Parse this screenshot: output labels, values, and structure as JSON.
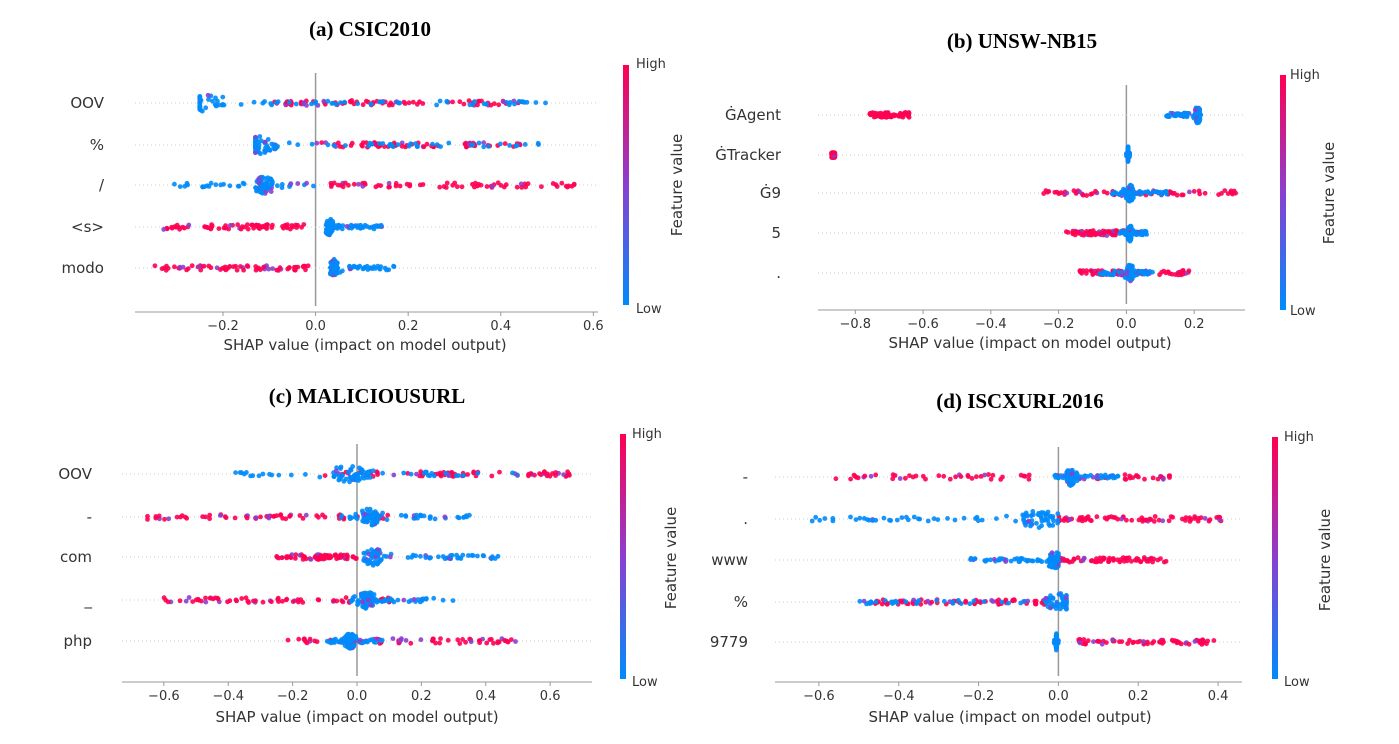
{
  "colors": {
    "low": "#008bfb",
    "mid": "#8a3fd0",
    "high": "#ff0052",
    "axis": "#999999",
    "zero": "#999999"
  },
  "chart_data": [
    {
      "type": "scatter",
      "title": "(a) CSIC2010",
      "xlabel": "SHAP value (impact on model output)",
      "xlim": [
        -0.39,
        0.61
      ],
      "xticks": [
        -0.2,
        0.0,
        0.2,
        0.4,
        0.6
      ],
      "xtick_labels": [
        "−0.2",
        "0.0",
        "0.2",
        "0.4",
        "0.6"
      ],
      "colorbar": {
        "label": "Feature value",
        "high": "High",
        "low": "Low"
      },
      "features": [
        {
          "name": "OOV",
          "low_range": [
            -0.25,
            0.5
          ],
          "low_peak": -0.24,
          "high_range": [
            -0.1,
            0.45
          ]
        },
        {
          "name": "%",
          "low_range": [
            -0.13,
            0.49
          ],
          "low_peak": -0.12,
          "high_range": [
            0.0,
            0.45
          ]
        },
        {
          "name": "/",
          "low_range": [
            -0.31,
            0.0
          ],
          "low_peak": -0.11,
          "high_range": [
            0.03,
            0.57
          ]
        },
        {
          "name": "<s>",
          "low_range": [
            0.02,
            0.15
          ],
          "low_peak": 0.03,
          "high_range": [
            -0.33,
            -0.02
          ]
        },
        {
          "name": "modo",
          "low_range": [
            0.03,
            0.17
          ],
          "low_peak": 0.04,
          "high_range": [
            -0.35,
            0.0
          ]
        }
      ]
    },
    {
      "type": "scatter",
      "title": "(b) UNSW-NB15",
      "xlabel": "SHAP value (impact on model output)",
      "xlim": [
        -0.91,
        0.35
      ],
      "xticks": [
        -0.8,
        -0.6,
        -0.4,
        -0.2,
        0.0,
        0.2
      ],
      "xtick_labels": [
        "−0.8",
        "−0.6",
        "−0.4",
        "−0.2",
        "0.0",
        "0.2"
      ],
      "colorbar": {
        "label": "Feature value",
        "high": "High",
        "low": "Low"
      },
      "features": [
        {
          "name": "ĠAgent",
          "low_range": [
            0.11,
            0.22
          ],
          "low_peak": 0.21,
          "high_range": [
            -0.76,
            -0.64
          ]
        },
        {
          "name": "ĠTracker",
          "low_range": [
            0.0,
            0.01
          ],
          "low_peak": 0.005,
          "high_range": [
            -0.87,
            -0.86
          ]
        },
        {
          "name": "Ġ9",
          "low_range": [
            -0.05,
            0.13
          ],
          "low_peak": 0.01,
          "high_range": [
            -0.25,
            0.33
          ]
        },
        {
          "name": "5",
          "low_range": [
            -0.02,
            0.06
          ],
          "low_peak": 0.01,
          "high_range": [
            -0.18,
            0.02
          ]
        },
        {
          "name": ".",
          "low_range": [
            -0.08,
            0.08
          ],
          "low_peak": 0.01,
          "high_range": [
            -0.14,
            0.19
          ]
        }
      ]
    },
    {
      "type": "scatter",
      "title": "(c) MALICIOUSURL",
      "xlabel": "SHAP value (impact on model output)",
      "xlim": [
        -0.73,
        0.73
      ],
      "xticks": [
        -0.6,
        -0.4,
        -0.2,
        0.0,
        0.2,
        0.4,
        0.6
      ],
      "xtick_labels": [
        "−0.6",
        "−0.4",
        "−0.2",
        "0.0",
        "0.2",
        "0.4",
        "0.6"
      ],
      "colorbar": {
        "label": "Feature value",
        "high": "High",
        "low": "Low"
      },
      "features": [
        {
          "name": "OOV",
          "low_range": [
            -0.4,
            0.5
          ],
          "low_peak": -0.02,
          "high_range": [
            -0.1,
            0.66
          ]
        },
        {
          "name": "-",
          "low_range": [
            -0.05,
            0.35
          ],
          "low_peak": 0.04,
          "high_range": [
            -0.67,
            0.1
          ]
        },
        {
          "name": "com",
          "low_range": [
            0.0,
            0.45
          ],
          "low_peak": 0.05,
          "high_range": [
            -0.25,
            0.0
          ]
        },
        {
          "name": "_",
          "low_range": [
            -0.02,
            0.3
          ],
          "low_peak": 0.03,
          "high_range": [
            -0.6,
            0.1
          ]
        },
        {
          "name": "php",
          "low_range": [
            -0.1,
            0.08
          ],
          "low_peak": -0.02,
          "high_range": [
            -0.23,
            0.51
          ]
        }
      ]
    },
    {
      "type": "scatter",
      "title": "(d) ISCXURL2016",
      "xlabel": "SHAP value (impact on model output)",
      "xlim": [
        -0.71,
        0.46
      ],
      "xticks": [
        -0.6,
        -0.4,
        -0.2,
        0.0,
        0.2,
        0.4
      ],
      "xtick_labels": [
        "−0.6",
        "−0.4",
        "−0.2",
        "0.0",
        "0.2",
        "0.4"
      ],
      "colorbar": {
        "label": "Feature value",
        "high": "High",
        "low": "Low"
      },
      "features": [
        {
          "name": "-",
          "low_range": [
            -0.01,
            0.15
          ],
          "low_peak": 0.03,
          "high_range": [
            -0.57,
            0.28
          ]
        },
        {
          "name": ".",
          "low_range": [
            -0.67,
            0.02
          ],
          "low_peak": -0.05,
          "high_range": [
            0.0,
            0.41
          ]
        },
        {
          "name": "www",
          "low_range": [
            -0.24,
            0.0
          ],
          "low_peak": -0.01,
          "high_range": [
            0.0,
            0.27
          ]
        },
        {
          "name": "%",
          "low_range": [
            -0.52,
            0.02
          ],
          "low_peak": 0.0,
          "high_range": [
            -0.47,
            -0.03
          ]
        },
        {
          "name": "9779",
          "low_range": [
            -0.01,
            0.0
          ],
          "low_peak": -0.005,
          "high_range": [
            0.03,
            0.4
          ]
        }
      ]
    }
  ]
}
